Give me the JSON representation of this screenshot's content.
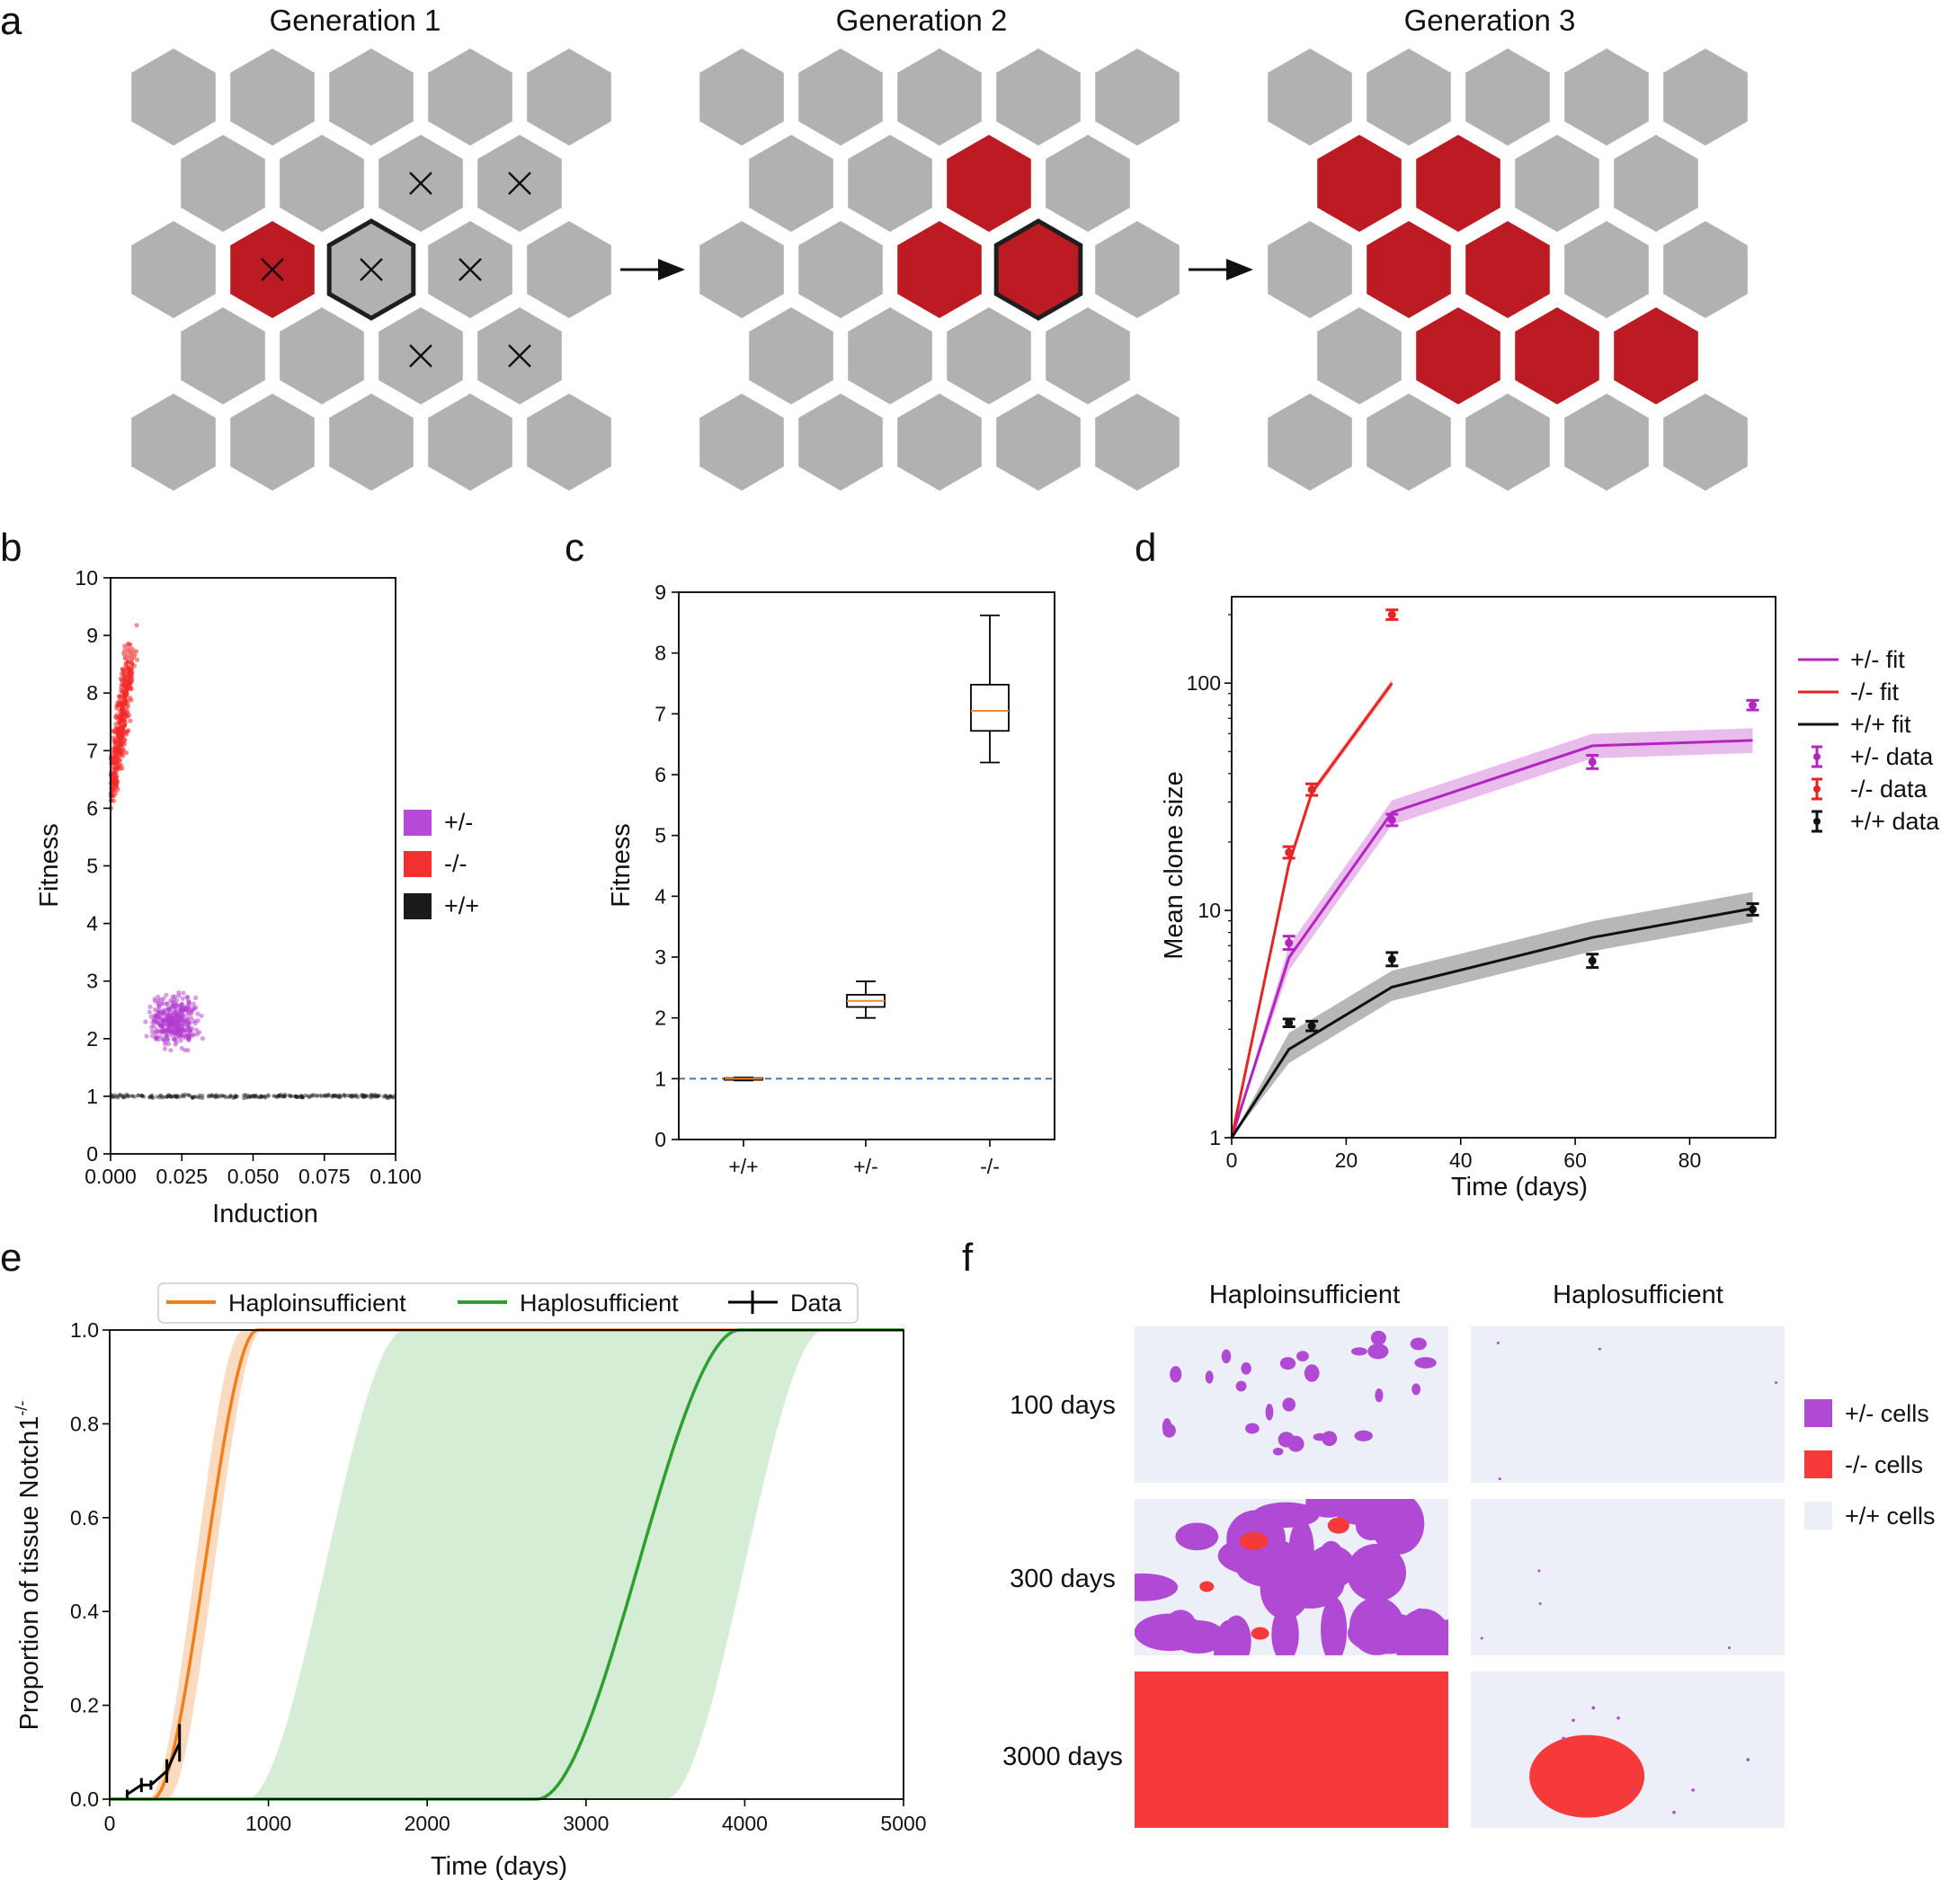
{
  "panel_a": {
    "letter": "a",
    "generations": [
      "Generation 1",
      "Generation 2",
      "Generation 3"
    ],
    "colors": {
      "grey": "#b1b1b1",
      "red": "#bd1b24",
      "outline": "#1e1e1e"
    },
    "rows": [
      5,
      4,
      5,
      4,
      5
    ],
    "grids": [
      {
        "red": [
          [
            2,
            1
          ]
        ],
        "outlined": [
          [
            2,
            2
          ]
        ],
        "crossed": [
          [
            1,
            2
          ],
          [
            1,
            3
          ],
          [
            2,
            1
          ],
          [
            2,
            2
          ],
          [
            2,
            3
          ],
          [
            3,
            2
          ],
          [
            3,
            3
          ]
        ]
      },
      {
        "red": [
          [
            1,
            2
          ],
          [
            2,
            2
          ],
          [
            2,
            3
          ]
        ],
        "outlined": [
          [
            2,
            3
          ]
        ],
        "crossed": []
      },
      {
        "red": [
          [
            1,
            0
          ],
          [
            1,
            1
          ],
          [
            2,
            1
          ],
          [
            2,
            2
          ],
          [
            3,
            1
          ],
          [
            3,
            2
          ],
          [
            3,
            3
          ]
        ],
        "outlined": [],
        "crossed": []
      }
    ],
    "icons": [
      "cross-icon",
      "arrow-right-icon"
    ]
  },
  "panel_b": {
    "letter": "b",
    "chart_data": {
      "type": "scatter",
      "xlabel": "Induction",
      "ylabel": "Fitness",
      "xlim": [
        0.0,
        0.1
      ],
      "ylim": [
        0,
        10
      ],
      "xticks": [
        "0.000",
        "0.025",
        "0.050",
        "0.075",
        "0.100"
      ],
      "yticks": [
        "0",
        "1",
        "2",
        "3",
        "4",
        "5",
        "6",
        "7",
        "8",
        "9",
        "10"
      ],
      "series": [
        {
          "name": "+/-",
          "color": "#b33ccf",
          "x_center": 0.022,
          "x_spread": 0.004,
          "y_center": 2.3,
          "y_spread": 0.2
        },
        {
          "name": "-/-",
          "color": "#f22a2a",
          "x_range": [
            0.0,
            0.009
          ],
          "y_range": [
            5.8,
            8.9
          ]
        },
        {
          "name": "+/+",
          "color": "#222222",
          "x_range": [
            0.0,
            0.1
          ],
          "y": 1.0
        }
      ],
      "legend": [
        {
          "label": "+/-",
          "color": "#b54ad6"
        },
        {
          "label": "-/-",
          "color": "#f23030"
        },
        {
          "label": "+/+",
          "color": "#1a1a1a"
        }
      ],
      "legend_position": "right"
    }
  },
  "panel_c": {
    "letter": "c",
    "chart_data": {
      "type": "box",
      "ylabel": "Fitness",
      "ylim": [
        0,
        9
      ],
      "yticks": [
        "0",
        "1",
        "2",
        "3",
        "4",
        "5",
        "6",
        "7",
        "8",
        "9"
      ],
      "categories": [
        "+/+",
        "+/-",
        "-/-"
      ],
      "boxes": [
        {
          "min": 0.97,
          "q1": 0.99,
          "median": 1.0,
          "q3": 1.01,
          "max": 1.02
        },
        {
          "min": 2.0,
          "q1": 2.18,
          "median": 2.28,
          "q3": 2.38,
          "max": 2.6
        },
        {
          "min": 6.2,
          "q1": 6.72,
          "median": 7.05,
          "q3": 7.48,
          "max": 8.62
        }
      ],
      "reference_line": 1.0,
      "median_color": "#f08a2d",
      "reference_color": "#3b6fb5"
    }
  },
  "panel_d": {
    "letter": "d",
    "chart_data": {
      "type": "line",
      "xlabel": "Time (days)",
      "ylabel": "Mean clone size",
      "y_scale": "log",
      "xlim": [
        0,
        95
      ],
      "ylim": [
        1,
        240
      ],
      "xticks": [
        0,
        20,
        40,
        60,
        80
      ],
      "yticks": [
        "1",
        "10",
        "100"
      ],
      "series": [
        {
          "name": "+/- fit",
          "color": "#b424c0",
          "x": [
            0,
            10,
            28,
            63,
            91
          ],
          "y": [
            1,
            6.2,
            27,
            53,
            56
          ],
          "band": [
            0.88,
            1.13
          ]
        },
        {
          "name": "-/- fit",
          "color": "#e52424",
          "x": [
            0,
            10,
            14,
            28
          ],
          "y": [
            1,
            16,
            33,
            100
          ],
          "band": [
            0.96,
            1.04
          ]
        },
        {
          "name": "+/+ fit",
          "color": "#111111",
          "x": [
            0,
            10,
            28,
            63,
            91
          ],
          "y": [
            1,
            2.45,
            4.6,
            7.6,
            10.2
          ],
          "band": [
            0.87,
            1.18
          ]
        }
      ],
      "data_points": [
        {
          "name": "+/- data",
          "color": "#b424c0",
          "x": [
            10,
            28,
            63,
            91
          ],
          "y": [
            7.2,
            25,
            45,
            80
          ],
          "err": [
            0.07,
            0.06,
            0.07,
            0.05
          ]
        },
        {
          "name": "-/- data",
          "color": "#e52424",
          "x": [
            10,
            14,
            28
          ],
          "y": [
            18,
            34,
            200
          ],
          "err": [
            0.06,
            0.06,
            0.05
          ]
        },
        {
          "name": "+/+ data",
          "color": "#111111",
          "x": [
            10,
            14,
            28,
            63,
            91
          ],
          "y": [
            3.2,
            3.1,
            6.1,
            6.0,
            10.1
          ],
          "err": [
            0.04,
            0.05,
            0.07,
            0.07,
            0.06
          ]
        }
      ],
      "legend_labels": [
        "+/- fit",
        "-/- fit",
        "+/+ fit",
        "+/- data",
        "-/- data",
        "+/+ data"
      ],
      "legend_position": "right"
    }
  },
  "panel_e": {
    "letter": "e",
    "chart_data": {
      "type": "line",
      "xlabel": "Time (days)",
      "ylabel": "Proportion of tissue Notch1",
      "ylabel_sup": "-/-",
      "xlim": [
        0,
        5000
      ],
      "ylim": [
        0.0,
        1.0
      ],
      "xticks": [
        0,
        1000,
        2000,
        3000,
        4000,
        5000
      ],
      "yticks": [
        "0.0",
        "0.2",
        "0.4",
        "0.6",
        "0.8",
        "1.0"
      ],
      "series": [
        {
          "name": "Haploinsufficient",
          "color": "#ef7f1a",
          "midpoint": 600,
          "band_low_mid": 540,
          "band_high_mid": 660
        },
        {
          "name": "Haplosufficient",
          "color": "#2ca02c",
          "midpoint": 3330,
          "band_low_mid": 1360,
          "band_high_mid": 4000
        },
        {
          "name": "Data",
          "color": "#000000",
          "x": [
            110,
            200,
            260,
            360,
            440
          ],
          "y": [
            0.01,
            0.03,
            0.03,
            0.06,
            0.12
          ],
          "yerr": [
            0.01,
            0.015,
            0.01,
            0.025,
            0.04
          ]
        }
      ],
      "legend_labels": [
        "Haploinsufficient",
        "Haplosufficient",
        "Data"
      ],
      "legend_position": "top"
    }
  },
  "panel_f": {
    "letter": "f",
    "columns": [
      "Haploinsufficient",
      "Haplosufficient"
    ],
    "rows": [
      "100 days",
      "300 days",
      "3000 days"
    ],
    "legend": [
      {
        "label": "+/- cells",
        "color": "#b04ad4"
      },
      {
        "label": "-/- cells",
        "color": "#f63a3a"
      },
      {
        "label": "+/+ cells",
        "color": "#eceef8"
      }
    ]
  }
}
